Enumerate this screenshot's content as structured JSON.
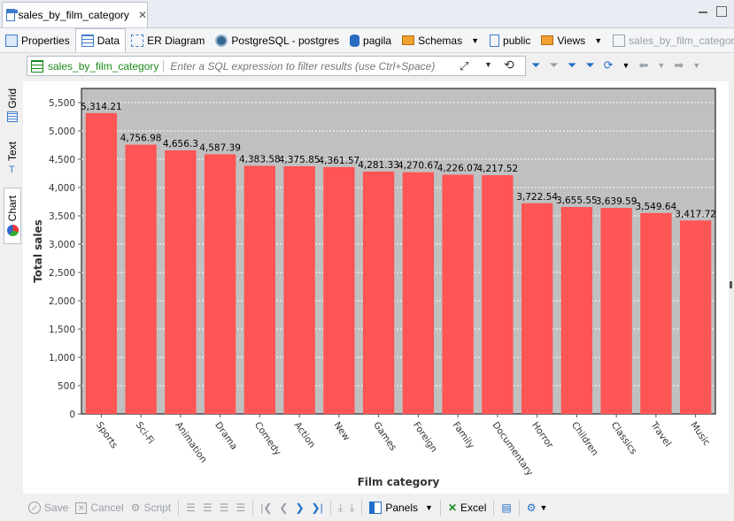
{
  "editor_tab": {
    "title": "sales_by_film_category",
    "close_icon": "close-icon"
  },
  "subtabs": [
    {
      "label": "Properties",
      "icon": "properties-icon",
      "active": false
    },
    {
      "label": "Data",
      "icon": "table-icon",
      "active": true
    },
    {
      "label": "ER Diagram",
      "icon": "er-diagram-icon",
      "active": false
    },
    {
      "label": "PostgreSQL - postgres",
      "icon": "postgres-icon",
      "active": false
    },
    {
      "label": "pagila",
      "icon": "database-icon",
      "active": false
    },
    {
      "label": "Schemas",
      "icon": "schemas-icon",
      "active": false
    },
    {
      "label": "public",
      "icon": "schema-icon",
      "active": false
    },
    {
      "label": "Views",
      "icon": "views-icon",
      "active": false
    },
    {
      "label": "sales_by_film_category",
      "icon": "view-icon",
      "active": false,
      "disabled": true
    }
  ],
  "filter": {
    "table_name": "sales_by_film_category",
    "placeholder": "Enter a SQL expression to filter results (use Ctrl+Space)"
  },
  "side_tabs": {
    "grid": "Grid",
    "text": "Text",
    "chart": "Chart"
  },
  "bottom_toolbar": {
    "save": "Save",
    "cancel": "Cancel",
    "script": "Script",
    "panels": "Panels",
    "excel": "Excel"
  },
  "colors": {
    "bar": "#ff5555",
    "plot_bg": "#c0c0c0",
    "link_green": "#1a8a1a",
    "accent_blue": "#1e6ec8"
  },
  "chart_data": {
    "type": "bar",
    "xlabel": "Film category",
    "ylabel": "Total sales",
    "ylim": [
      0,
      5750
    ],
    "yticks": [
      0,
      500,
      1000,
      1500,
      2000,
      2500,
      3000,
      3500,
      4000,
      4500,
      5000,
      5500
    ],
    "ytick_labels": [
      "0",
      "500",
      "1,000",
      "1,500",
      "2,000",
      "2,500",
      "3,000",
      "3,500",
      "4,000",
      "4,500",
      "5,000",
      "5,500"
    ],
    "grid": true,
    "categories": [
      "Sports",
      "Sci-Fi",
      "Animation",
      "Drama",
      "Comedy",
      "Action",
      "New",
      "Games",
      "Foreign",
      "Family",
      "Documentary",
      "Horror",
      "Children",
      "Classics",
      "Travel",
      "Music"
    ],
    "values": [
      5314.21,
      4756.98,
      4656.3,
      4587.39,
      4383.58,
      4375.85,
      4361.57,
      4281.33,
      4270.67,
      4226.07,
      4217.52,
      3722.54,
      3655.55,
      3639.59,
      3549.64,
      3417.72
    ],
    "value_labels": [
      "5,314.21",
      "4,756.98",
      "4,656.3",
      "4,587.39",
      "4,383.58",
      "4,375.85",
      "4,361.57",
      "4,281.33",
      "4,270.67",
      "4,226.07",
      "4,217.52",
      "3,722.54",
      "3,655.55",
      "3,639.59",
      "3,549.64",
      "3,417.72"
    ]
  }
}
